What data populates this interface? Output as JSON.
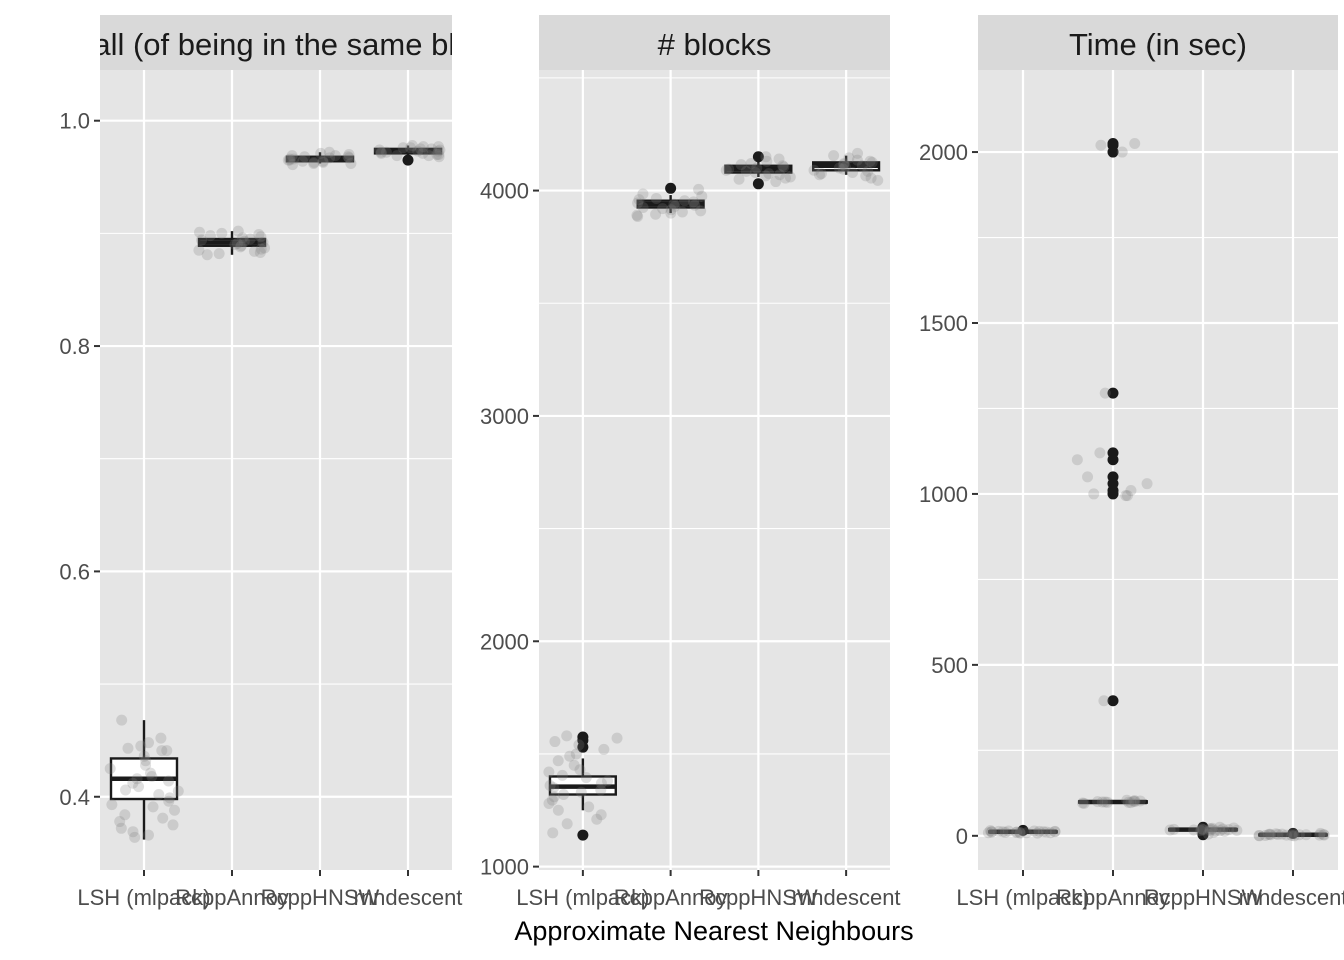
{
  "chart_data": [
    {
      "type": "boxplot",
      "title": "Recall (of being in the same block)",
      "categories": [
        "LSH (mlpack)",
        "RcppAnnoy",
        "RcppHNSW",
        "rnndescent"
      ],
      "ylim": [
        0.335,
        1.045
      ],
      "yticks": [
        0.4,
        0.6,
        0.8,
        1.0
      ],
      "ytick_labels": [
        "0.4",
        "0.6",
        "0.8",
        "1.0"
      ],
      "boxes": [
        {
          "category": "LSH (mlpack)",
          "min": 0.362,
          "q1": 0.398,
          "median": 0.416,
          "q3": 0.434,
          "max": 0.468,
          "outliers": []
        },
        {
          "category": "RcppAnnoy",
          "min": 0.881,
          "q1": 0.889,
          "median": 0.892,
          "q3": 0.895,
          "max": 0.902,
          "outliers": []
        },
        {
          "category": "RcppHNSW",
          "min": 0.962,
          "q1": 0.964,
          "median": 0.966,
          "q3": 0.968,
          "max": 0.972,
          "outliers": []
        },
        {
          "category": "rnndescent",
          "min": 0.968,
          "q1": 0.971,
          "median": 0.973,
          "q3": 0.975,
          "max": 0.978,
          "outliers": [
            0.965
          ]
        }
      ],
      "points": [
        {
          "category": "LSH (mlpack)",
          "values": [
            0.468,
            0.452,
            0.448,
            0.445,
            0.443,
            0.441,
            0.441,
            0.436,
            0.432,
            0.428,
            0.425,
            0.421,
            0.418,
            0.416,
            0.414,
            0.412,
            0.409,
            0.406,
            0.405,
            0.402,
            0.399,
            0.396,
            0.393,
            0.391,
            0.388,
            0.384,
            0.381,
            0.378,
            0.375,
            0.372,
            0.369,
            0.366,
            0.364
          ]
        },
        {
          "category": "RcppAnnoy",
          "values": [
            0.902,
            0.901,
            0.9,
            0.899,
            0.898,
            0.897,
            0.896,
            0.895,
            0.894,
            0.893,
            0.892,
            0.891,
            0.89,
            0.889,
            0.888,
            0.887,
            0.886,
            0.885,
            0.884,
            0.883,
            0.882,
            0.881
          ]
        },
        {
          "category": "RcppHNSW",
          "values": [
            0.972,
            0.971,
            0.97,
            0.969,
            0.969,
            0.968,
            0.968,
            0.967,
            0.967,
            0.966,
            0.966,
            0.965,
            0.965,
            0.964,
            0.964,
            0.963,
            0.963,
            0.962,
            0.962,
            0.961
          ]
        },
        {
          "category": "rnndescent",
          "values": [
            0.978,
            0.977,
            0.977,
            0.976,
            0.976,
            0.975,
            0.975,
            0.974,
            0.974,
            0.973,
            0.973,
            0.972,
            0.972,
            0.971,
            0.971,
            0.97,
            0.97,
            0.969,
            0.969,
            0.968
          ]
        }
      ]
    },
    {
      "type": "boxplot",
      "title": "# blocks",
      "categories": [
        "LSH (mlpack)",
        "RcppAnnoy",
        "RcppHNSW",
        "rnndescent"
      ],
      "ylim": [
        985,
        4535
      ],
      "yticks": [
        1000,
        2000,
        3000,
        4000
      ],
      "ytick_labels": [
        "1000",
        "2000",
        "3000",
        "4000"
      ],
      "boxes": [
        {
          "category": "LSH (mlpack)",
          "min": 1250,
          "q1": 1320,
          "median": 1355,
          "q3": 1400,
          "max": 1480,
          "outliers": [
            1140,
            1530,
            1560,
            1575
          ]
        },
        {
          "category": "RcppAnnoy",
          "min": 3900,
          "q1": 3925,
          "median": 3940,
          "q3": 3955,
          "max": 3980,
          "outliers": [
            4010
          ]
        },
        {
          "category": "RcppHNSW",
          "min": 4060,
          "q1": 4080,
          "median": 4095,
          "q3": 4110,
          "max": 4140,
          "outliers": [
            4030,
            4150
          ]
        },
        {
          "category": "rnndescent",
          "min": 4070,
          "q1": 4090,
          "median": 4110,
          "q3": 4125,
          "max": 4155,
          "outliers": []
        }
      ],
      "points": [
        {
          "category": "LSH (mlpack)",
          "values": [
            1580,
            1570,
            1555,
            1540,
            1520,
            1500,
            1490,
            1470,
            1450,
            1430,
            1420,
            1405,
            1395,
            1380,
            1370,
            1360,
            1350,
            1340,
            1330,
            1320,
            1310,
            1295,
            1280,
            1265,
            1250,
            1230,
            1210,
            1190,
            1150
          ]
        },
        {
          "category": "RcppAnnoy",
          "values": [
            4005,
            3985,
            3975,
            3965,
            3960,
            3955,
            3950,
            3945,
            3940,
            3935,
            3930,
            3925,
            3920,
            3915,
            3910,
            3905,
            3900,
            3895,
            3890,
            3885
          ]
        },
        {
          "category": "RcppHNSW",
          "values": [
            4150,
            4140,
            4130,
            4120,
            4115,
            4110,
            4105,
            4100,
            4095,
            4090,
            4085,
            4080,
            4075,
            4070,
            4065,
            4060,
            4055,
            4050,
            4040
          ]
        },
        {
          "category": "rnndescent",
          "values": [
            4165,
            4155,
            4145,
            4135,
            4130,
            4125,
            4120,
            4115,
            4110,
            4105,
            4100,
            4095,
            4090,
            4085,
            4080,
            4075,
            4070,
            4065,
            4055,
            4045
          ]
        }
      ]
    },
    {
      "type": "boxplot",
      "title": "Time (in sec)",
      "categories": [
        "LSH (mlpack)",
        "RcppAnnoy",
        "RcppHNSW",
        "rnndescent"
      ],
      "ylim": [
        -100,
        2240
      ],
      "yticks": [
        0,
        500,
        1000,
        1500,
        2000
      ],
      "ytick_labels": [
        "0",
        "500",
        "1000",
        "1500",
        "2000"
      ],
      "boxes": [
        {
          "category": "LSH (mlpack)",
          "min": 9,
          "q1": 11,
          "median": 12,
          "q3": 13,
          "max": 15,
          "outliers": [
            16
          ]
        },
        {
          "category": "RcppAnnoy",
          "min": 95,
          "q1": 97,
          "median": 99,
          "q3": 101,
          "max": 104,
          "outliers": [
            395,
            1000,
            1010,
            1030,
            1050,
            1100,
            1120,
            1295,
            2000,
            2020,
            2025
          ]
        },
        {
          "category": "RcppHNSW",
          "min": 14,
          "q1": 16,
          "median": 18,
          "q3": 20,
          "max": 23,
          "outliers": [
            3,
            9,
            25
          ]
        },
        {
          "category": "rnndescent",
          "min": 1,
          "q1": 2,
          "median": 3,
          "q3": 4,
          "max": 6,
          "outliers": [
            7
          ]
        }
      ],
      "points": [
        {
          "category": "LSH (mlpack)",
          "values": [
            15,
            14,
            14,
            13,
            13,
            13,
            12,
            12,
            12,
            12,
            11,
            11,
            11,
            10,
            10,
            10,
            9,
            9,
            9,
            8,
            8
          ]
        },
        {
          "category": "RcppAnnoy",
          "values": [
            2000,
            2020,
            2025,
            1295,
            1120,
            1100,
            1050,
            1030,
            1010,
            1000,
            995,
            995,
            395,
            104,
            103,
            102,
            101,
            100,
            100,
            99,
            99,
            98,
            98,
            97,
            96,
            95
          ]
        },
        {
          "category": "RcppHNSW",
          "values": [
            25,
            23,
            22,
            21,
            20,
            20,
            19,
            19,
            18,
            18,
            17,
            17,
            16,
            16,
            15,
            15,
            14,
            13,
            10,
            5
          ]
        },
        {
          "category": "rnndescent",
          "values": [
            7,
            6,
            6,
            5,
            5,
            4,
            4,
            4,
            3,
            3,
            3,
            2,
            2,
            2,
            1,
            1,
            1,
            0,
            0
          ]
        }
      ]
    }
  ],
  "x_axis_title": "Approximate Nearest Neighbours",
  "colors": {
    "panel_background": "#e5e5e5",
    "grid": "#ffffff",
    "strip_background": "#d9d9d9",
    "box_fill": "#ffffff",
    "box_stroke": "#1a1a1a",
    "point": "#808080",
    "tick_text": "#4d4d4d",
    "axis_title": "#000000"
  }
}
